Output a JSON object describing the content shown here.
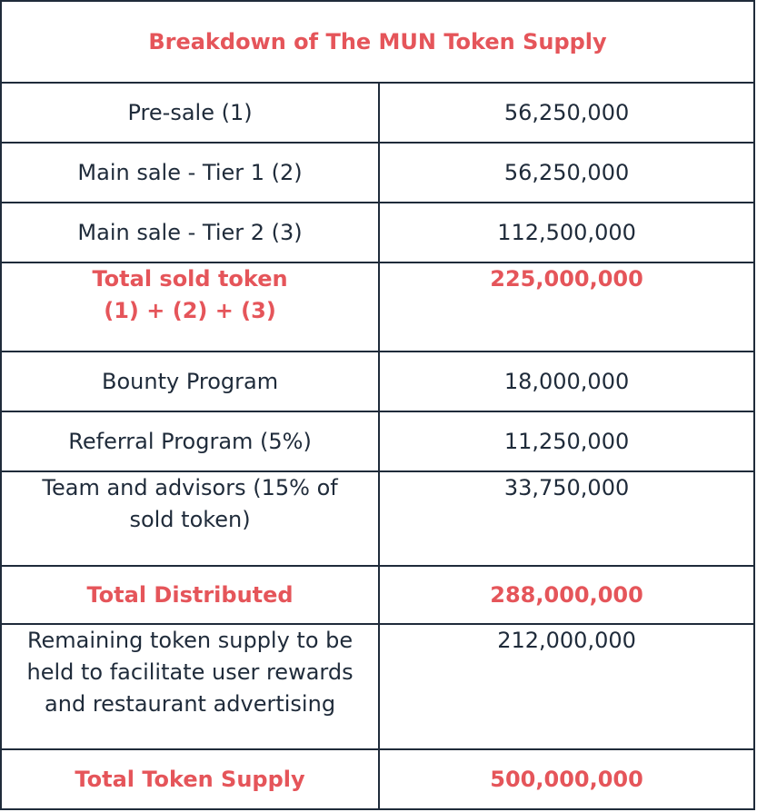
{
  "title": "Breakdown of The MUN Token Supply",
  "colors": {
    "accent": "#e5555a",
    "text": "#1f2b3a",
    "border": "#1f2b3a"
  },
  "rows": [
    {
      "label": [
        "Pre-sale (1)"
      ],
      "value": "56,250,000",
      "highlight": false
    },
    {
      "label": [
        "Main sale - Tier 1 (2)"
      ],
      "value": "56,250,000",
      "highlight": false
    },
    {
      "label": [
        "Main sale - Tier 2 (3)"
      ],
      "value": "112,500,000",
      "highlight": false
    },
    {
      "label": [
        "Total sold token",
        "(1) + (2) + (3)"
      ],
      "value": "225,000,000",
      "highlight": true
    },
    {
      "label": [
        "Bounty Program"
      ],
      "value": "18,000,000",
      "highlight": false
    },
    {
      "label": [
        "Referral Program (5%)"
      ],
      "value": "11,250,000",
      "highlight": false
    },
    {
      "label": [
        "Team and advisors (15% of",
        "sold token)"
      ],
      "value": "33,750,000",
      "highlight": false
    },
    {
      "label": [
        "Total Distributed"
      ],
      "value": "288,000,000",
      "highlight": true
    },
    {
      "label": [
        "Remaining token supply to be",
        "held to facilitate user rewards",
        "and restaurant advertising"
      ],
      "value": "212,000,000",
      "highlight": false
    },
    {
      "label": [
        "Total Token Supply"
      ],
      "value": "500,000,000",
      "highlight": true
    }
  ]
}
